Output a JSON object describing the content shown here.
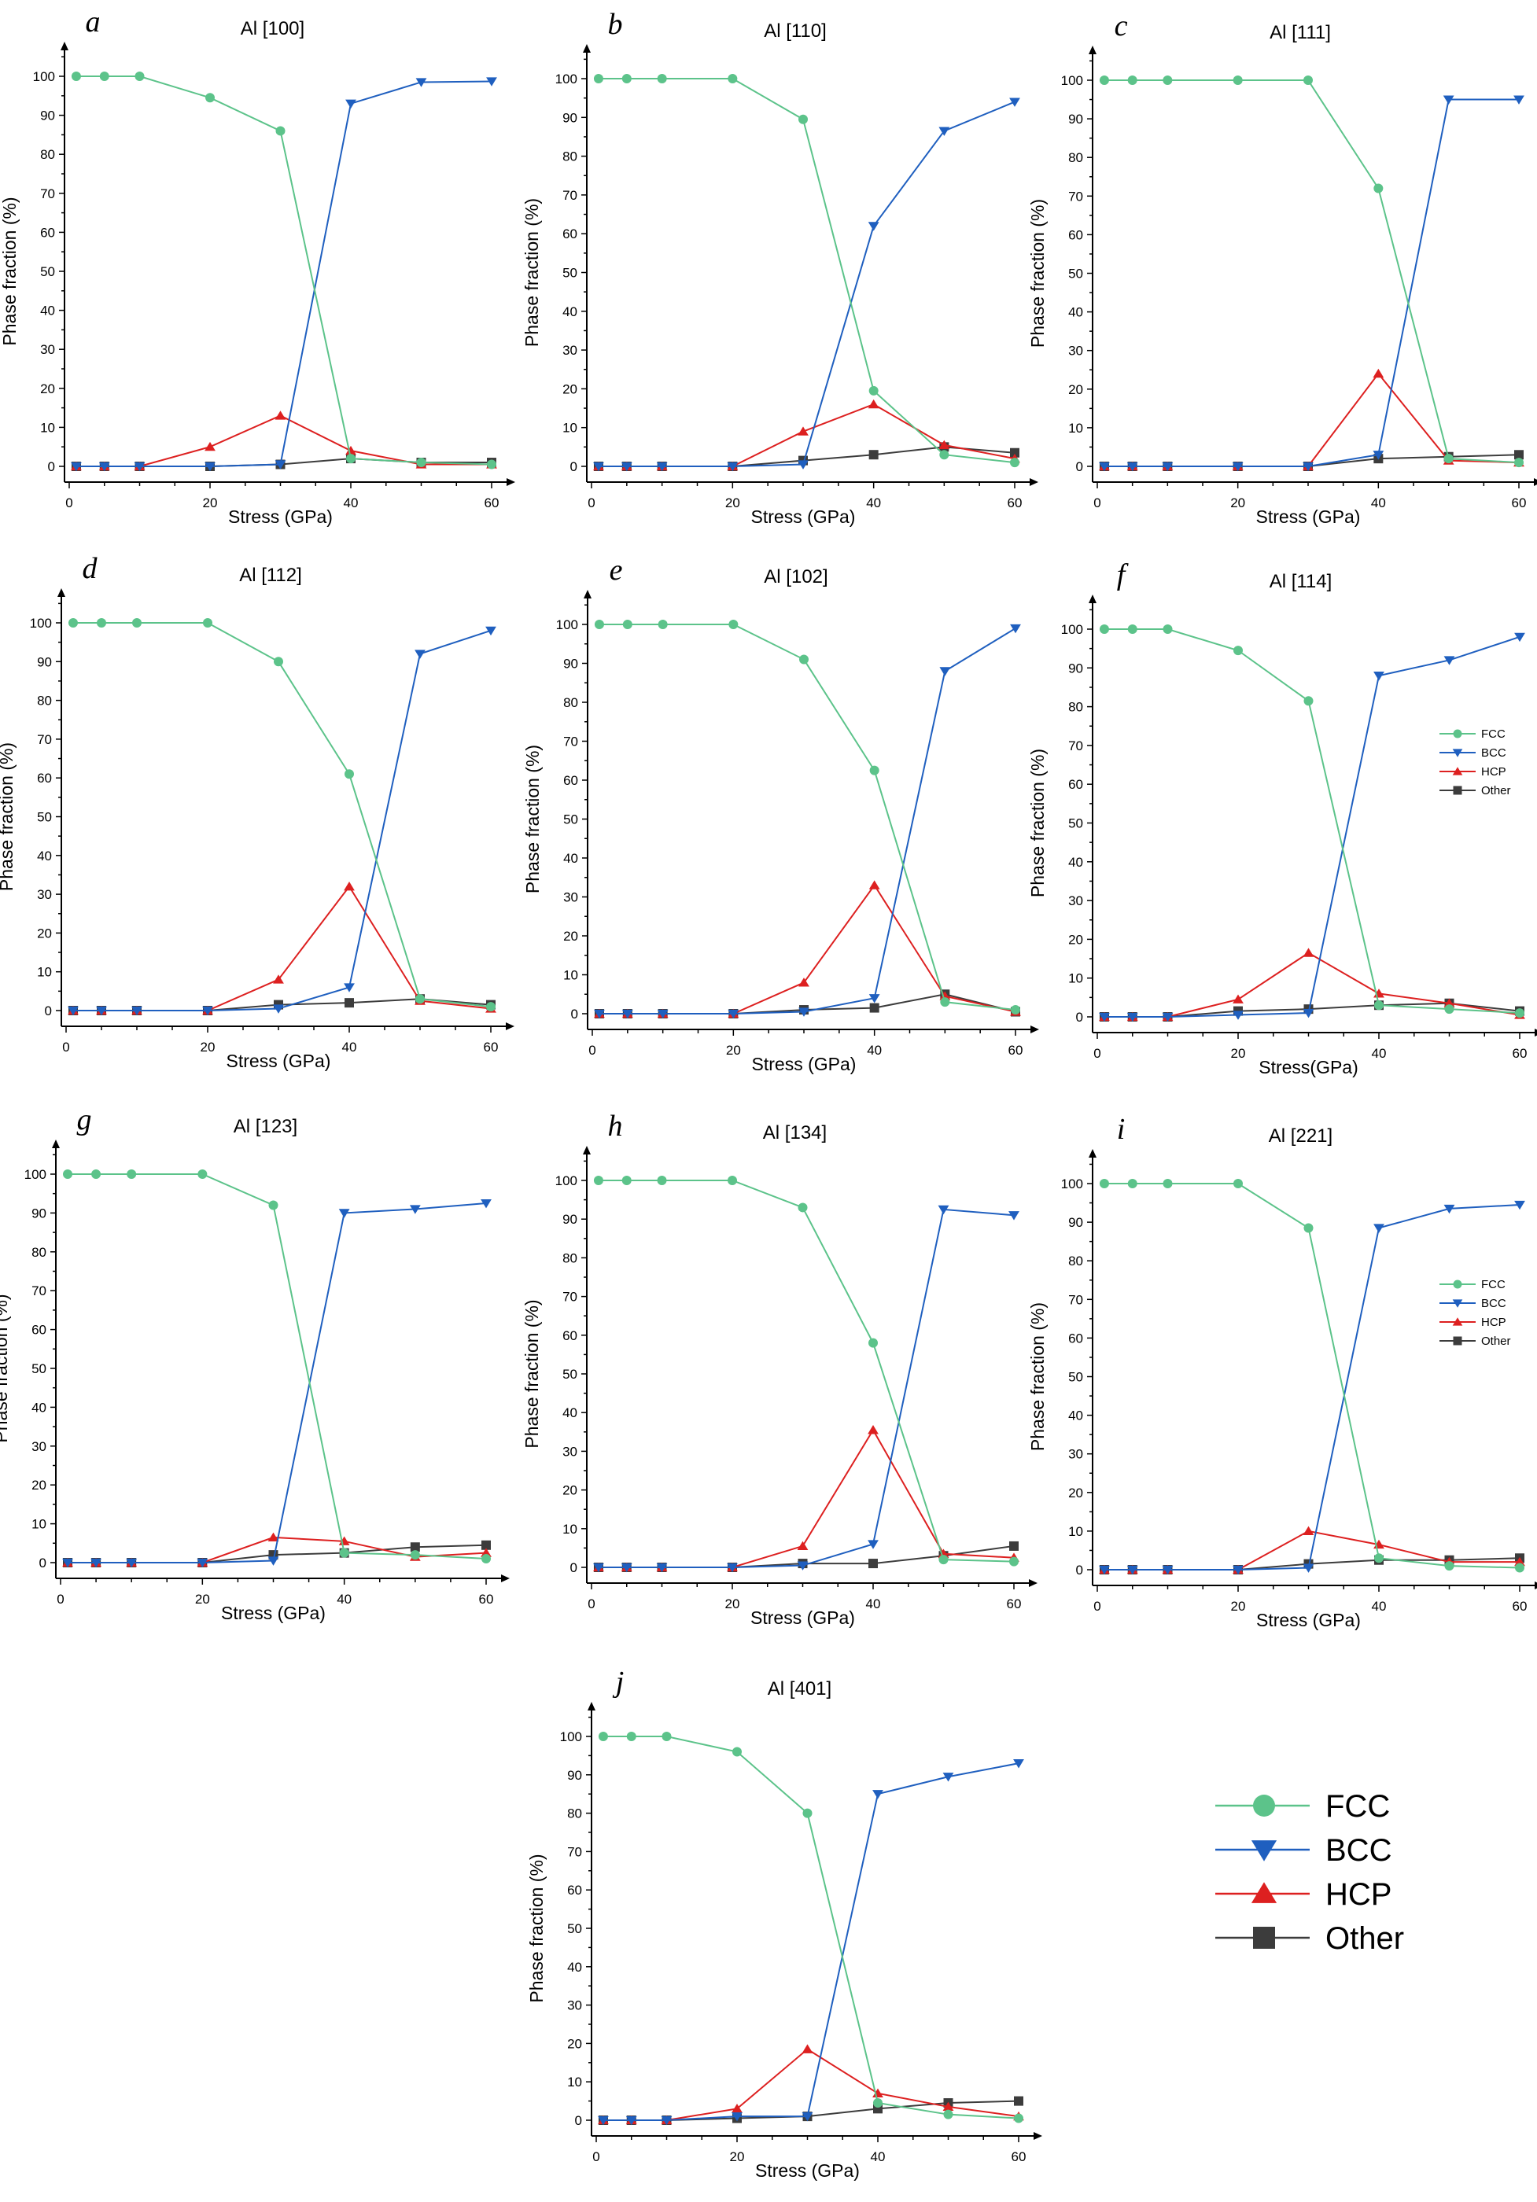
{
  "colors": {
    "FCC": "#5cc38a",
    "BCC": "#1f5fbf",
    "HCP": "#dd2020",
    "Other": "#3c3c3c",
    "axis": "#000000"
  },
  "axes": {
    "xlabel": "Stress (GPa)",
    "ylabel": "Phase fraction (%)",
    "xticks": [
      0,
      20,
      40,
      60
    ],
    "yticks": [
      0,
      10,
      20,
      30,
      40,
      50,
      60,
      70,
      80,
      90,
      100
    ]
  },
  "legend_entries": [
    "FCC",
    "BCC",
    "HCP",
    "Other"
  ],
  "chart_data": [
    {
      "type": "line",
      "id": "a",
      "letter": "a",
      "title": "Al [100]",
      "xlabel": "Stress (GPa)",
      "ylabel": "Phase fraction (%)",
      "xlim": [
        0,
        60
      ],
      "ylim": [
        0,
        100
      ],
      "x": [
        1,
        5,
        10,
        20,
        30,
        40,
        50,
        60
      ],
      "series": [
        {
          "name": "FCC",
          "values": [
            100,
            100,
            100,
            94.5,
            86,
            2,
            1,
            0.5
          ]
        },
        {
          "name": "BCC",
          "values": [
            0,
            0,
            0,
            0,
            0.5,
            93,
            98.5,
            98.7
          ]
        },
        {
          "name": "HCP",
          "values": [
            0,
            0,
            0,
            5,
            13,
            4,
            0.5,
            0.5
          ]
        },
        {
          "name": "Other",
          "values": [
            0,
            0,
            0,
            0,
            0.5,
            2,
            1,
            1
          ]
        }
      ]
    },
    {
      "type": "line",
      "id": "b",
      "letter": "b",
      "title": "Al [110]",
      "xlabel": "Stress (GPa)",
      "ylabel": "Phase fraction (%)",
      "xlim": [
        0,
        60
      ],
      "ylim": [
        0,
        100
      ],
      "x": [
        1,
        5,
        10,
        20,
        30,
        40,
        50,
        60
      ],
      "series": [
        {
          "name": "FCC",
          "values": [
            100,
            100,
            100,
            100,
            89.5,
            19.5,
            3,
            1
          ]
        },
        {
          "name": "BCC",
          "values": [
            0,
            0,
            0,
            0,
            0.5,
            62,
            86.5,
            94
          ]
        },
        {
          "name": "HCP",
          "values": [
            0,
            0,
            0,
            0,
            9,
            16,
            5.5,
            2
          ]
        },
        {
          "name": "Other",
          "values": [
            0,
            0,
            0,
            0,
            1.5,
            3,
            5,
            3.5
          ]
        }
      ]
    },
    {
      "type": "line",
      "id": "c",
      "letter": "c",
      "title": "Al [111]",
      "xlabel": "Stress (GPa)",
      "ylabel": "Phase fraction (%)",
      "xlim": [
        0,
        60
      ],
      "ylim": [
        0,
        100
      ],
      "x": [
        1,
        5,
        10,
        20,
        30,
        40,
        50,
        60
      ],
      "series": [
        {
          "name": "FCC",
          "values": [
            100,
            100,
            100,
            100,
            100,
            72,
            2,
            1
          ]
        },
        {
          "name": "BCC",
          "values": [
            0,
            0,
            0,
            0,
            0,
            3,
            95,
            95
          ]
        },
        {
          "name": "HCP",
          "values": [
            0,
            0,
            0,
            0,
            0,
            24,
            1.5,
            1
          ]
        },
        {
          "name": "Other",
          "values": [
            0,
            0,
            0,
            0,
            0,
            2,
            2.5,
            3
          ]
        }
      ]
    },
    {
      "type": "line",
      "id": "d",
      "letter": "d",
      "title": "Al [112]",
      "xlabel": "Stress (GPa)",
      "ylabel": "Phase fraction (%)",
      "xlim": [
        0,
        60
      ],
      "ylim": [
        0,
        100
      ],
      "x": [
        1,
        5,
        10,
        20,
        30,
        40,
        50,
        60
      ],
      "series": [
        {
          "name": "FCC",
          "values": [
            100,
            100,
            100,
            100,
            90,
            61,
            3,
            1
          ]
        },
        {
          "name": "BCC",
          "values": [
            0,
            0,
            0,
            0,
            0.5,
            6,
            92,
            98
          ]
        },
        {
          "name": "HCP",
          "values": [
            0,
            0,
            0,
            0,
            8,
            32,
            2.5,
            0.5
          ]
        },
        {
          "name": "Other",
          "values": [
            0,
            0,
            0,
            0,
            1.5,
            2,
            3,
            1.5
          ]
        }
      ]
    },
    {
      "type": "line",
      "id": "e",
      "letter": "e",
      "title": "Al [102]",
      "xlabel": "Stress (GPa)",
      "ylabel": "Phase fraction (%)",
      "xlim": [
        0,
        60
      ],
      "ylim": [
        0,
        100
      ],
      "x": [
        1,
        5,
        10,
        20,
        30,
        40,
        50,
        60
      ],
      "series": [
        {
          "name": "FCC",
          "values": [
            100,
            100,
            100,
            100,
            91,
            62.5,
            3,
            1
          ]
        },
        {
          "name": "BCC",
          "values": [
            0,
            0,
            0,
            0,
            0.5,
            4,
            88,
            99
          ]
        },
        {
          "name": "HCP",
          "values": [
            0,
            0,
            0,
            0,
            8,
            33,
            4.5,
            0.5
          ]
        },
        {
          "name": "Other",
          "values": [
            0,
            0,
            0,
            0,
            1,
            1.5,
            5,
            0.5
          ]
        }
      ]
    },
    {
      "type": "line",
      "id": "f",
      "letter": "f",
      "title": "Al [114]",
      "xlabel": "Stress(GPa)",
      "ylabel": "Phase fraction (%)",
      "xlim": [
        0,
        60
      ],
      "ylim": [
        0,
        100
      ],
      "x": [
        1,
        5,
        10,
        20,
        30,
        40,
        50,
        60
      ],
      "legend": [
        "FCC",
        "BCC",
        "HCP",
        "Other"
      ],
      "series": [
        {
          "name": "FCC",
          "values": [
            100,
            100,
            100,
            94.5,
            81.5,
            3,
            2,
            1
          ]
        },
        {
          "name": "BCC",
          "values": [
            0,
            0,
            0,
            0.5,
            1,
            88,
            92,
            98
          ]
        },
        {
          "name": "HCP",
          "values": [
            0,
            0,
            0,
            4.5,
            16.5,
            6,
            3.5,
            0.5
          ]
        },
        {
          "name": "Other",
          "values": [
            0,
            0,
            0,
            1.5,
            2,
            3,
            3.5,
            1.5
          ]
        }
      ]
    },
    {
      "type": "line",
      "id": "g",
      "letter": "g",
      "title": "Al [123]",
      "xlabel": "Stress (GPa)",
      "ylabel": "Phase fraction (%)",
      "xlim": [
        0,
        60
      ],
      "ylim": [
        0,
        100
      ],
      "x": [
        1,
        5,
        10,
        20,
        30,
        40,
        50,
        60
      ],
      "series": [
        {
          "name": "FCC",
          "values": [
            100,
            100,
            100,
            100,
            92,
            2.5,
            2,
            1
          ]
        },
        {
          "name": "BCC",
          "values": [
            0,
            0,
            0,
            0,
            0.5,
            90,
            91,
            92.5
          ]
        },
        {
          "name": "HCP",
          "values": [
            0,
            0,
            0,
            0,
            6.5,
            5.5,
            1.5,
            2.5
          ]
        },
        {
          "name": "Other",
          "values": [
            0,
            0,
            0,
            0,
            2,
            2.5,
            4,
            4.5
          ]
        }
      ]
    },
    {
      "type": "line",
      "id": "h",
      "letter": "h",
      "title": "Al [134]",
      "xlabel": "Stress (GPa)",
      "ylabel": "Phase fraction (%)",
      "xlim": [
        0,
        60
      ],
      "ylim": [
        0,
        100
      ],
      "x": [
        1,
        5,
        10,
        20,
        30,
        40,
        50,
        60
      ],
      "series": [
        {
          "name": "FCC",
          "values": [
            100,
            100,
            100,
            100,
            93,
            58,
            2,
            1.5
          ]
        },
        {
          "name": "BCC",
          "values": [
            0,
            0,
            0,
            0,
            0.5,
            6,
            92.5,
            91
          ]
        },
        {
          "name": "HCP",
          "values": [
            0,
            0,
            0,
            0,
            5.5,
            35.5,
            3.5,
            2.5
          ]
        },
        {
          "name": "Other",
          "values": [
            0,
            0,
            0,
            0,
            1,
            1,
            3,
            5.5
          ]
        }
      ]
    },
    {
      "type": "line",
      "id": "i",
      "letter": "i",
      "title": "Al [221]",
      "xlabel": "Stress (GPa)",
      "ylabel": "Phase fraction (%)",
      "xlim": [
        0,
        60
      ],
      "ylim": [
        0,
        100
      ],
      "x": [
        1,
        5,
        10,
        20,
        30,
        40,
        50,
        60
      ],
      "legend": [
        "FCC",
        "BCC",
        "HCP",
        "Other"
      ],
      "series": [
        {
          "name": "FCC",
          "values": [
            100,
            100,
            100,
            100,
            88.5,
            3,
            1,
            0.5
          ]
        },
        {
          "name": "BCC",
          "values": [
            0,
            0,
            0,
            0,
            0.5,
            88.5,
            93.5,
            94.5
          ]
        },
        {
          "name": "HCP",
          "values": [
            0,
            0,
            0,
            0,
            10,
            6.5,
            2,
            2
          ]
        },
        {
          "name": "Other",
          "values": [
            0,
            0,
            0,
            0,
            1.5,
            2.5,
            2.5,
            3
          ]
        }
      ]
    },
    {
      "type": "line",
      "id": "j",
      "letter": "j",
      "title": "Al [401]",
      "xlabel": "Stress (GPa)",
      "ylabel": "Phase fraction (%)",
      "xlim": [
        0,
        60
      ],
      "ylim": [
        0,
        100
      ],
      "x": [
        1,
        5,
        10,
        20,
        30,
        40,
        50,
        60
      ],
      "series": [
        {
          "name": "FCC",
          "values": [
            100,
            100,
            100,
            96,
            80,
            4.5,
            1.5,
            0.5
          ]
        },
        {
          "name": "BCC",
          "values": [
            0,
            0,
            0,
            1,
            1,
            85,
            89.5,
            93
          ]
        },
        {
          "name": "HCP",
          "values": [
            0,
            0,
            0,
            3,
            18.5,
            7,
            3.5,
            1
          ]
        },
        {
          "name": "Other",
          "values": [
            0,
            0,
            0,
            0.5,
            1,
            3,
            4.5,
            5
          ]
        }
      ]
    }
  ]
}
